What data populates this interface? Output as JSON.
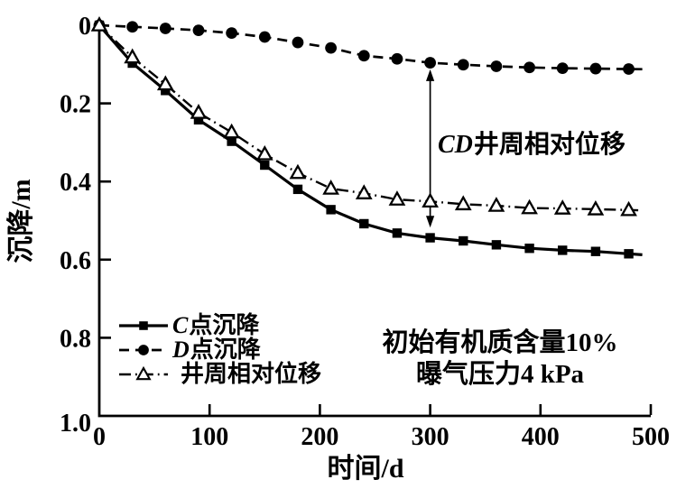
{
  "chart_data": {
    "type": "line",
    "title": "",
    "xlabel": "时间/d",
    "ylabel": "沉降/m",
    "xlim": [
      0,
      500
    ],
    "ylim": [
      0,
      1.0
    ],
    "y_axis_inverted_down": true,
    "grid": false,
    "x_ticks": [
      0,
      100,
      200,
      300,
      400,
      500
    ],
    "x_tick_labels": [
      "0",
      "100",
      "200",
      "300",
      "400",
      "500"
    ],
    "y_ticks": [
      0,
      0.2,
      0.4,
      0.6,
      0.8,
      1.0
    ],
    "y_tick_labels": [
      "0",
      "0.2",
      "0.4",
      "0.6",
      "0.8",
      "1.0"
    ],
    "x": [
      0,
      30,
      60,
      90,
      120,
      150,
      180,
      210,
      240,
      270,
      300,
      330,
      360,
      390,
      420,
      450,
      480
    ],
    "series": [
      {
        "name": "C点沉降",
        "marker": "square-filled",
        "line": "solid",
        "values": [
          0,
          0.097,
          0.167,
          0.242,
          0.297,
          0.358,
          0.42,
          0.472,
          0.508,
          0.532,
          0.544,
          0.552,
          0.562,
          0.571,
          0.576,
          0.579,
          0.585
        ]
      },
      {
        "name": "D点沉降",
        "marker": "circle-filled",
        "line": "dashed",
        "values": [
          0,
          0.004,
          0.008,
          0.013,
          0.02,
          0.03,
          0.044,
          0.058,
          0.078,
          0.086,
          0.096,
          0.101,
          0.105,
          0.108,
          0.11,
          0.111,
          0.112
        ]
      },
      {
        "name": "井周相对位移",
        "marker": "triangle-open",
        "line": "dash-dot",
        "values": [
          0,
          0.082,
          0.151,
          0.224,
          0.274,
          0.33,
          0.378,
          0.418,
          0.43,
          0.446,
          0.451,
          0.458,
          0.462,
          0.468,
          0.469,
          0.471,
          0.473
        ]
      }
    ],
    "legend": {
      "position": "lower-left-inside",
      "items": [
        {
          "italic": "C",
          "text": "点沉降"
        },
        {
          "italic": "D",
          "text": "点沉降"
        },
        {
          "italic": "",
          "text": "井周相对位移"
        }
      ]
    },
    "annotations": {
      "arrow_label": "CD井周相对位移",
      "arrow_label_italic": "CD",
      "arrow_label_text": "井周相对位移",
      "arrow_x": 300,
      "arrow_y_from": 0.113,
      "arrow_y_to": 0.518,
      "condition_line1": "初始有机质含量10%",
      "condition_line2": "曝气压力4 kPa"
    },
    "colors": {
      "foreground": "#000000",
      "background": "#ffffff"
    }
  }
}
